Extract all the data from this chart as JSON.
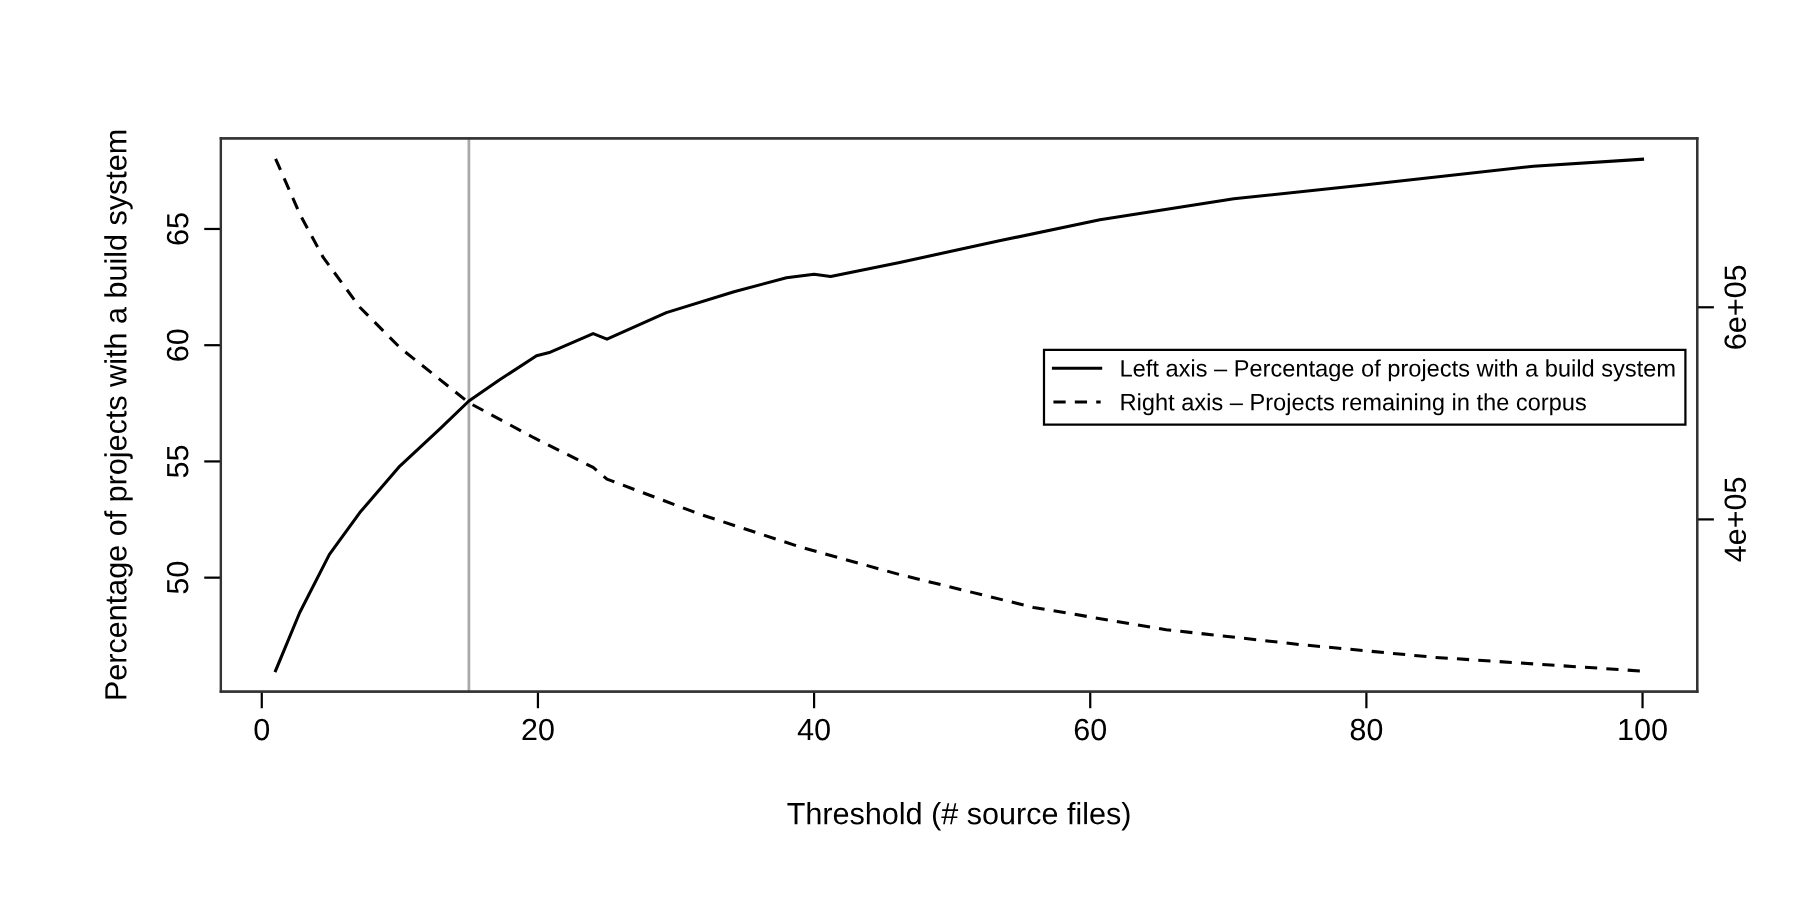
{
  "chart_data": {
    "type": "line",
    "xlabel": "Threshold (# source files)",
    "ylabel": "Percentage of projects with a build system",
    "xlim": [
      -2.96,
      103.96
    ],
    "xticks": [
      0,
      20,
      40,
      60,
      80,
      100
    ],
    "ylim": [
      45.1,
      68.9
    ],
    "yticks": [
      50,
      55,
      60,
      65
    ],
    "y2lim": [
      237700,
      759300
    ],
    "y2ticks": [
      {
        "value": 400000,
        "label": "4e+05"
      },
      {
        "value": 600000,
        "label": "6e+05"
      }
    ],
    "legend": "right",
    "grid": false,
    "ref_lines": [
      {
        "axis": "x",
        "value": 15,
        "color": "#aaaaaa"
      }
    ],
    "series": [
      {
        "name": "Left axis – Percentage of projects with a build system",
        "color": "#000000",
        "line_style": "solid",
        "x": [
          1,
          2.75,
          4.9,
          7.1,
          10,
          12.9,
          15,
          17.2,
          19.9,
          20.9,
          24,
          25,
          29.3,
          34.2,
          38,
          40,
          41.2,
          46.2,
          53.5,
          60.7,
          70.4,
          80,
          92.1,
          100
        ],
        "values": [
          46.0,
          48.5,
          51.0,
          52.8,
          54.8,
          56.4,
          57.6,
          58.5,
          59.55,
          59.7,
          60.5,
          60.26,
          61.4,
          62.3,
          62.9,
          63.05,
          62.96,
          63.56,
          64.5,
          65.4,
          66.3,
          66.9,
          67.7,
          68.0
        ]
      },
      {
        "name": "Right axis – Projects remaining in the corpus",
        "color": "#000000",
        "line_style": "dashed",
        "axis": "y2",
        "x": [
          1,
          2.75,
          4.45,
          7.1,
          10,
          15,
          19.7,
          24,
          25,
          31.7,
          39,
          46.2,
          55.9,
          65.5,
          75.2,
          84.9,
          100
        ],
        "values": [
          740000,
          688000,
          647000,
          600000,
          562000,
          510000,
          477000,
          449000,
          438000,
          405000,
          374000,
          348000,
          317000,
          296000,
          282000,
          270000,
          257000
        ]
      }
    ]
  }
}
